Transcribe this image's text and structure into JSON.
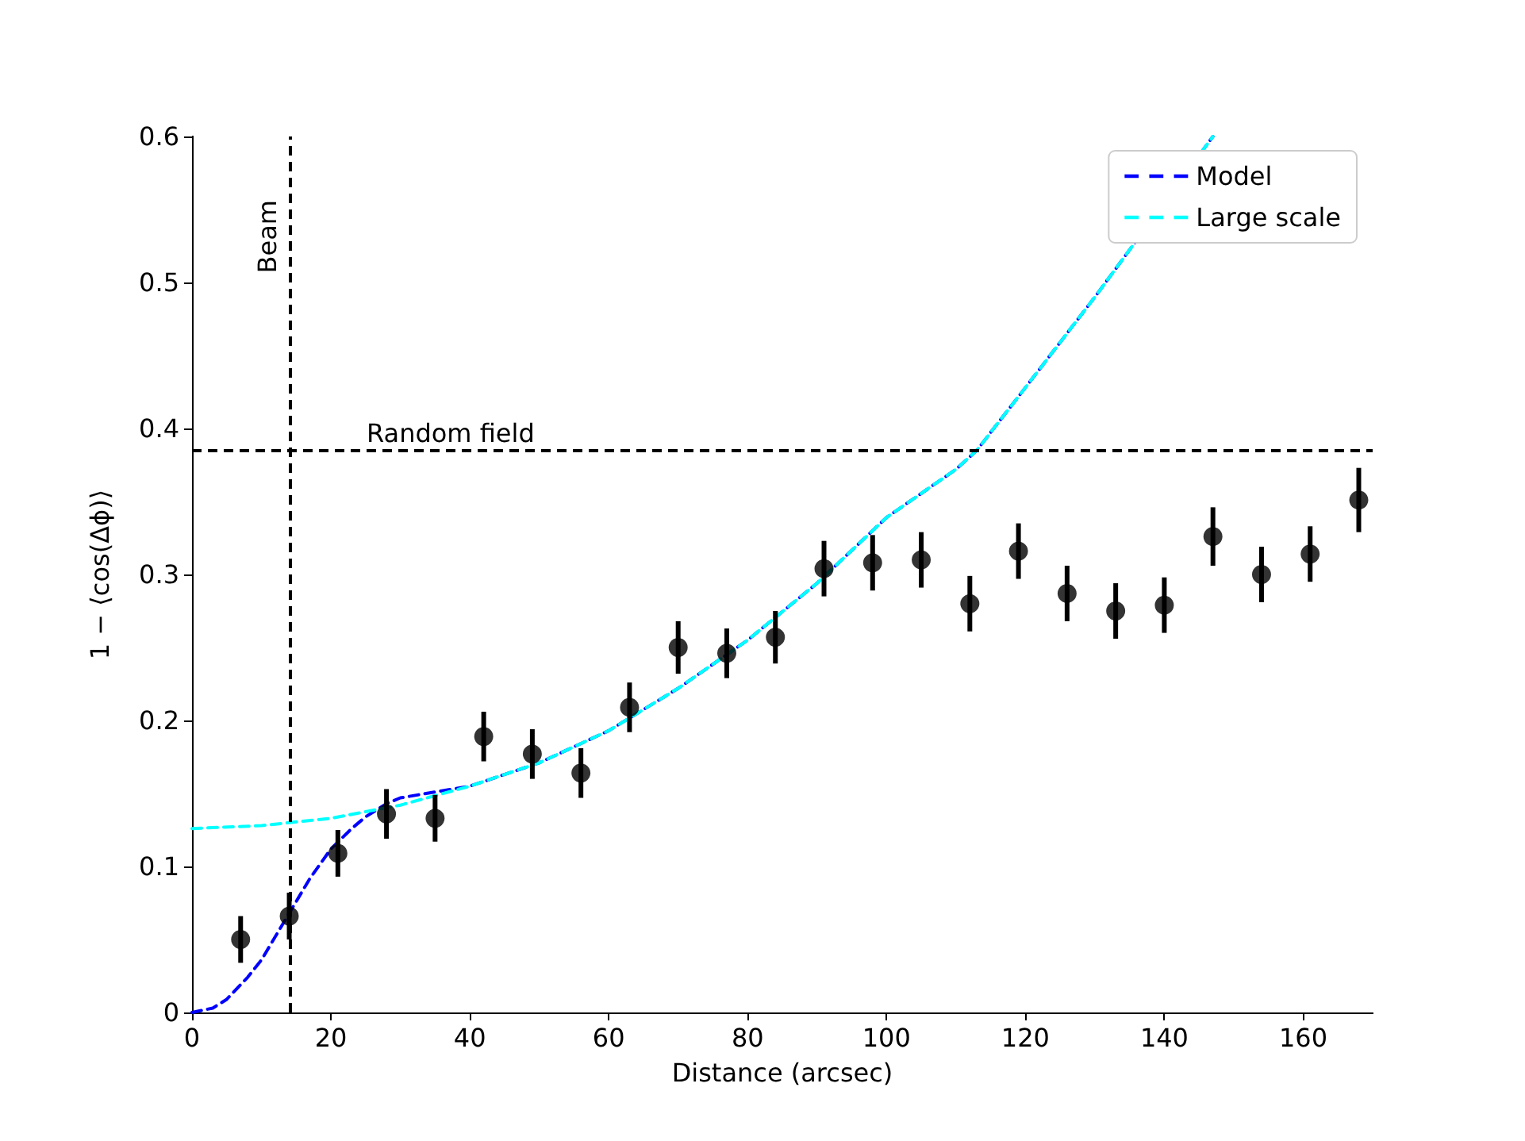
{
  "chart_data": {
    "type": "scatter",
    "xlabel": "Distance (arcsec)",
    "ylabel": "1 − ⟨cos(Δϕ)⟩",
    "xlim": [
      0,
      170
    ],
    "ylim": [
      0,
      0.6
    ],
    "xticks": [
      0,
      20,
      40,
      60,
      80,
      100,
      120,
      140,
      160
    ],
    "yticks": [
      0,
      0.1,
      0.2,
      0.3,
      0.4,
      0.5,
      0.6
    ],
    "grid": false,
    "legend": "top right",
    "series": [
      {
        "color": "#000000",
        "marker": "circle",
        "x": [
          7,
          14,
          21,
          28,
          35,
          42,
          49,
          56,
          63,
          70,
          77,
          84,
          91,
          98,
          105,
          112,
          119,
          126,
          133,
          140,
          147,
          154,
          161,
          168
        ],
        "values": [
          0.05,
          0.066,
          0.109,
          0.136,
          0.133,
          0.189,
          0.177,
          0.164,
          0.209,
          0.25,
          0.246,
          0.257,
          0.304,
          0.308,
          0.31,
          0.28,
          0.316,
          0.287,
          0.275,
          0.279,
          0.326,
          0.3,
          0.314,
          0.351
        ],
        "errors": [
          0.016,
          0.016,
          0.016,
          0.017,
          0.016,
          0.017,
          0.017,
          0.017,
          0.017,
          0.018,
          0.017,
          0.018,
          0.019,
          0.019,
          0.019,
          0.019,
          0.019,
          0.019,
          0.019,
          0.019,
          0.02,
          0.019,
          0.019,
          0.022
        ]
      },
      {
        "type": "line",
        "name": "Model",
        "color": "#0000ff",
        "marker": "none",
        "line_style": "dashed",
        "x": [
          0,
          3,
          5,
          8,
          10,
          12,
          14,
          17,
          20,
          23,
          25,
          28,
          30,
          35,
          40,
          50,
          60,
          70,
          80,
          90,
          100,
          110,
          113,
          120,
          130,
          147
        ],
        "values": [
          0,
          0.003,
          0.009,
          0.024,
          0.036,
          0.052,
          0.068,
          0.092,
          0.112,
          0.126,
          0.134,
          0.143,
          0.147,
          0.151,
          0.155,
          0.171,
          0.193,
          0.222,
          0.255,
          0.294,
          0.339,
          0.372,
          0.385,
          0.428,
          0.49,
          0.6
        ]
      },
      {
        "type": "line",
        "name": "Large scale",
        "color": "#00ffff",
        "marker": "none",
        "line_style": "dashed",
        "x": [
          0,
          10,
          14,
          20,
          30,
          40,
          50,
          60,
          70,
          80,
          90,
          100,
          110,
          113,
          120,
          130,
          147
        ],
        "values": [
          0.126,
          0.128,
          0.13,
          0.133,
          0.142,
          0.155,
          0.171,
          0.193,
          0.222,
          0.255,
          0.294,
          0.339,
          0.372,
          0.385,
          0.428,
          0.49,
          0.6
        ]
      }
    ],
    "ref_lines": [
      {
        "axis": "x",
        "value": 14,
        "label": "Beam",
        "color": "#000000",
        "line_style": "dashed"
      },
      {
        "axis": "y",
        "value": 0.385,
        "label": "Random field",
        "color": "#000000",
        "line_style": "dashed"
      }
    ]
  }
}
